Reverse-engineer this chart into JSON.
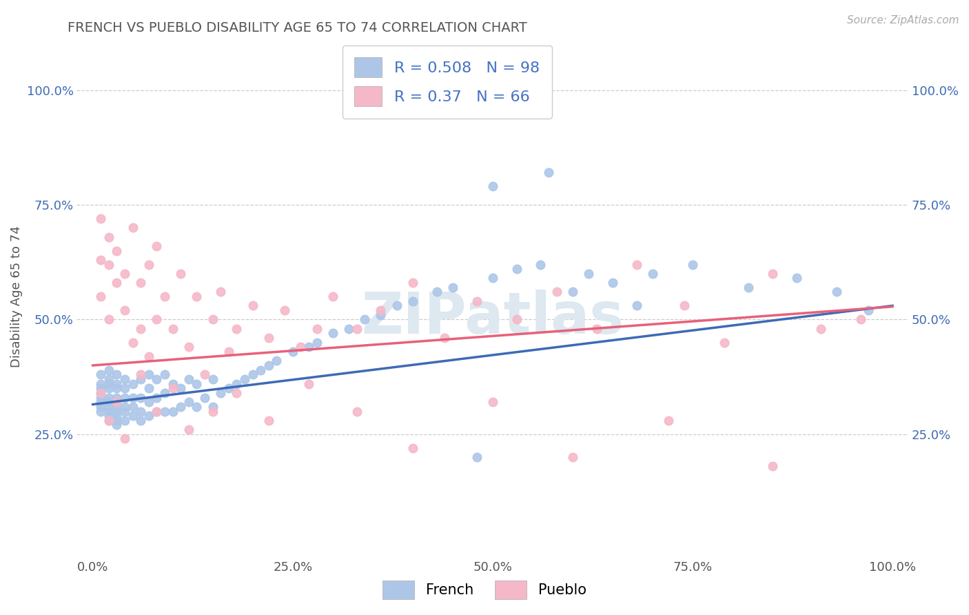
{
  "title": "FRENCH VS PUEBLO DISABILITY AGE 65 TO 74 CORRELATION CHART",
  "source_text": "Source: ZipAtlas.com",
  "ylabel": "Disability Age 65 to 74",
  "xlim": [
    -0.02,
    1.02
  ],
  "ylim": [
    -0.02,
    1.12
  ],
  "xtick_labels": [
    "0.0%",
    "25.0%",
    "50.0%",
    "75.0%",
    "100.0%"
  ],
  "xtick_vals": [
    0.0,
    0.25,
    0.5,
    0.75,
    1.0
  ],
  "ytick_labels": [
    "25.0%",
    "50.0%",
    "75.0%",
    "100.0%"
  ],
  "ytick_vals": [
    0.25,
    0.5,
    0.75,
    1.0
  ],
  "french_R": 0.508,
  "french_N": 98,
  "pueblo_R": 0.37,
  "pueblo_N": 66,
  "french_color": "#adc6e8",
  "pueblo_color": "#f5b8c8",
  "french_line_color": "#3d6bb5",
  "pueblo_line_color": "#e8607a",
  "title_color": "#666666",
  "watermark_text": "ZIPatlas",
  "watermark_color": "#dde8f0",
  "legend_R_color": "#4472c4",
  "legend_N_color": "#4472c4",
  "french_line_intercept": 0.315,
  "french_line_slope": 0.215,
  "pueblo_line_intercept": 0.4,
  "pueblo_line_slope": 0.128,
  "french_scatter_x": [
    0.01,
    0.01,
    0.01,
    0.01,
    0.01,
    0.01,
    0.01,
    0.01,
    0.02,
    0.02,
    0.02,
    0.02,
    0.02,
    0.02,
    0.02,
    0.02,
    0.02,
    0.02,
    0.03,
    0.03,
    0.03,
    0.03,
    0.03,
    0.03,
    0.03,
    0.03,
    0.03,
    0.03,
    0.04,
    0.04,
    0.04,
    0.04,
    0.04,
    0.04,
    0.05,
    0.05,
    0.05,
    0.05,
    0.06,
    0.06,
    0.06,
    0.06,
    0.07,
    0.07,
    0.07,
    0.07,
    0.08,
    0.08,
    0.08,
    0.09,
    0.09,
    0.09,
    0.1,
    0.1,
    0.11,
    0.11,
    0.12,
    0.12,
    0.13,
    0.13,
    0.14,
    0.15,
    0.15,
    0.16,
    0.17,
    0.18,
    0.19,
    0.2,
    0.21,
    0.22,
    0.23,
    0.25,
    0.27,
    0.28,
    0.3,
    0.32,
    0.34,
    0.36,
    0.38,
    0.4,
    0.43,
    0.45,
    0.48,
    0.5,
    0.53,
    0.56,
    0.6,
    0.65,
    0.7,
    0.75,
    0.82,
    0.88,
    0.93,
    0.5,
    0.57,
    0.62,
    0.68,
    0.97
  ],
  "french_scatter_y": [
    0.3,
    0.31,
    0.32,
    0.33,
    0.34,
    0.35,
    0.36,
    0.38,
    0.28,
    0.29,
    0.3,
    0.31,
    0.32,
    0.33,
    0.35,
    0.36,
    0.37,
    0.39,
    0.27,
    0.28,
    0.29,
    0.3,
    0.31,
    0.32,
    0.33,
    0.35,
    0.36,
    0.38,
    0.28,
    0.3,
    0.31,
    0.33,
    0.35,
    0.37,
    0.29,
    0.31,
    0.33,
    0.36,
    0.28,
    0.3,
    0.33,
    0.37,
    0.29,
    0.32,
    0.35,
    0.38,
    0.3,
    0.33,
    0.37,
    0.3,
    0.34,
    0.38,
    0.3,
    0.36,
    0.31,
    0.35,
    0.32,
    0.37,
    0.31,
    0.36,
    0.33,
    0.31,
    0.37,
    0.34,
    0.35,
    0.36,
    0.37,
    0.38,
    0.39,
    0.4,
    0.41,
    0.43,
    0.44,
    0.45,
    0.47,
    0.48,
    0.5,
    0.51,
    0.53,
    0.54,
    0.56,
    0.57,
    0.2,
    0.59,
    0.61,
    0.62,
    0.56,
    0.58,
    0.6,
    0.62,
    0.57,
    0.59,
    0.56,
    0.79,
    0.82,
    0.6,
    0.53,
    0.52
  ],
  "pueblo_scatter_x": [
    0.01,
    0.01,
    0.01,
    0.02,
    0.02,
    0.02,
    0.03,
    0.03,
    0.04,
    0.04,
    0.05,
    0.05,
    0.06,
    0.06,
    0.07,
    0.07,
    0.08,
    0.08,
    0.09,
    0.1,
    0.11,
    0.12,
    0.13,
    0.14,
    0.15,
    0.16,
    0.17,
    0.18,
    0.2,
    0.22,
    0.24,
    0.26,
    0.28,
    0.3,
    0.33,
    0.36,
    0.4,
    0.44,
    0.48,
    0.53,
    0.58,
    0.63,
    0.68,
    0.74,
    0.79,
    0.85,
    0.91,
    0.96,
    0.01,
    0.02,
    0.03,
    0.04,
    0.06,
    0.08,
    0.1,
    0.12,
    0.15,
    0.18,
    0.22,
    0.27,
    0.33,
    0.4,
    0.5,
    0.6,
    0.72,
    0.85
  ],
  "pueblo_scatter_y": [
    0.55,
    0.63,
    0.72,
    0.5,
    0.62,
    0.68,
    0.58,
    0.65,
    0.52,
    0.6,
    0.45,
    0.7,
    0.48,
    0.58,
    0.42,
    0.62,
    0.5,
    0.66,
    0.55,
    0.48,
    0.6,
    0.44,
    0.55,
    0.38,
    0.5,
    0.56,
    0.43,
    0.48,
    0.53,
    0.46,
    0.52,
    0.44,
    0.48,
    0.55,
    0.48,
    0.52,
    0.58,
    0.46,
    0.54,
    0.5,
    0.56,
    0.48,
    0.62,
    0.53,
    0.45,
    0.6,
    0.48,
    0.5,
    0.34,
    0.28,
    0.32,
    0.24,
    0.38,
    0.3,
    0.35,
    0.26,
    0.3,
    0.34,
    0.28,
    0.36,
    0.3,
    0.22,
    0.32,
    0.2,
    0.28,
    0.18
  ],
  "background_color": "#ffffff",
  "grid_color": "#cccccc"
}
